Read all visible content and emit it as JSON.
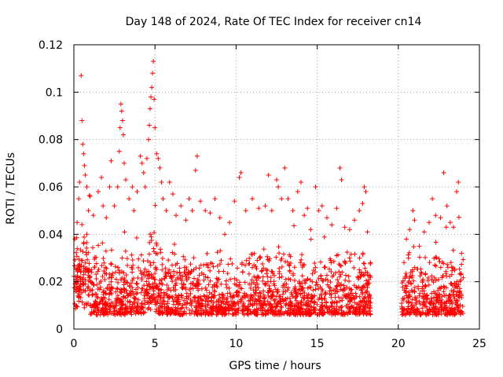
{
  "chart_data": {
    "type": "scatter",
    "title": "Day 148 of 2024, Rate Of TEC Index for receiver cn14",
    "xlabel": "GPS time / hours",
    "ylabel": "ROTI / TECUs",
    "xlim": [
      0,
      25
    ],
    "ylim": [
      0,
      0.12
    ],
    "x_ticks": [
      0,
      5,
      10,
      15,
      20,
      25
    ],
    "x_tick_labels": [
      "0",
      "5",
      "10",
      "15",
      "20",
      "25"
    ],
    "y_ticks": [
      0,
      0.02,
      0.04,
      0.06,
      0.08,
      0.1,
      0.12
    ],
    "y_tick_labels": [
      "0",
      "0.02",
      "0.04",
      "0.06",
      "0.08",
      "0.1",
      "0.12"
    ],
    "grid": true,
    "marker": "+",
    "color": "#ff0000",
    "data_gap_hours": [
      18.3,
      20.2
    ],
    "series": [
      {
        "name": "ROTI",
        "points": [
          [
            0.2,
            0.045
          ],
          [
            0.3,
            0.055
          ],
          [
            0.35,
            0.062
          ],
          [
            0.45,
            0.107
          ],
          [
            0.5,
            0.088
          ],
          [
            0.55,
            0.078
          ],
          [
            0.6,
            0.074
          ],
          [
            0.65,
            0.069
          ],
          [
            0.7,
            0.065
          ],
          [
            0.8,
            0.06
          ],
          [
            0.9,
            0.05
          ],
          [
            1.0,
            0.056
          ],
          [
            1.2,
            0.048
          ],
          [
            1.5,
            0.058
          ],
          [
            1.7,
            0.064
          ],
          [
            1.8,
            0.052
          ],
          [
            2.0,
            0.047
          ],
          [
            2.2,
            0.06
          ],
          [
            2.3,
            0.071
          ],
          [
            2.5,
            0.052
          ],
          [
            2.7,
            0.06
          ],
          [
            2.8,
            0.075
          ],
          [
            2.85,
            0.085
          ],
          [
            2.9,
            0.095
          ],
          [
            2.95,
            0.092
          ],
          [
            3.0,
            0.088
          ],
          [
            3.05,
            0.082
          ],
          [
            3.1,
            0.07
          ],
          [
            3.2,
            0.063
          ],
          [
            3.4,
            0.055
          ],
          [
            3.6,
            0.06
          ],
          [
            3.7,
            0.05
          ],
          [
            3.9,
            0.058
          ],
          [
            4.1,
            0.073
          ],
          [
            4.2,
            0.07
          ],
          [
            4.3,
            0.066
          ],
          [
            4.4,
            0.06
          ],
          [
            4.5,
            0.072
          ],
          [
            4.6,
            0.08
          ],
          [
            4.65,
            0.086
          ],
          [
            4.7,
            0.093
          ],
          [
            4.75,
            0.098
          ],
          [
            4.8,
            0.102
          ],
          [
            4.85,
            0.108
          ],
          [
            4.9,
            0.113
          ],
          [
            4.95,
            0.097
          ],
          [
            5.0,
            0.085
          ],
          [
            5.1,
            0.074
          ],
          [
            5.2,
            0.072
          ],
          [
            5.3,
            0.068
          ],
          [
            5.4,
            0.062
          ],
          [
            5.5,
            0.055
          ],
          [
            5.7,
            0.05
          ],
          [
            5.9,
            0.062
          ],
          [
            6.1,
            0.057
          ],
          [
            6.3,
            0.048
          ],
          [
            6.6,
            0.052
          ],
          [
            6.9,
            0.046
          ],
          [
            7.1,
            0.055
          ],
          [
            7.3,
            0.05
          ],
          [
            7.5,
            0.067
          ],
          [
            7.6,
            0.073
          ],
          [
            7.8,
            0.054
          ],
          [
            8.1,
            0.05
          ],
          [
            8.4,
            0.049
          ],
          [
            8.7,
            0.055
          ],
          [
            9.0,
            0.047
          ],
          [
            9.3,
            0.04
          ],
          [
            9.6,
            0.045
          ],
          [
            9.9,
            0.054
          ],
          [
            10.2,
            0.064
          ],
          [
            10.3,
            0.066
          ],
          [
            10.6,
            0.05
          ],
          [
            11.0,
            0.055
          ],
          [
            11.4,
            0.051
          ],
          [
            11.8,
            0.052
          ],
          [
            12.0,
            0.065
          ],
          [
            12.2,
            0.05
          ],
          [
            12.5,
            0.063
          ],
          [
            12.6,
            0.06
          ],
          [
            12.8,
            0.055
          ],
          [
            13.0,
            0.068
          ],
          [
            13.2,
            0.055
          ],
          [
            13.5,
            0.05
          ],
          [
            13.8,
            0.058
          ],
          [
            14.0,
            0.062
          ],
          [
            14.2,
            0.048
          ],
          [
            14.4,
            0.051
          ],
          [
            14.6,
            0.042
          ],
          [
            14.9,
            0.06
          ],
          [
            15.1,
            0.05
          ],
          [
            15.3,
            0.052
          ],
          [
            15.6,
            0.047
          ],
          [
            15.9,
            0.044
          ],
          [
            16.2,
            0.051
          ],
          [
            16.4,
            0.068
          ],
          [
            16.5,
            0.063
          ],
          [
            16.7,
            0.043
          ],
          [
            17.0,
            0.042
          ],
          [
            17.3,
            0.046
          ],
          [
            17.6,
            0.05
          ],
          [
            17.8,
            0.053
          ],
          [
            17.9,
            0.06
          ],
          [
            18.0,
            0.058
          ],
          [
            18.1,
            0.041
          ],
          [
            20.5,
            0.038
          ],
          [
            20.7,
            0.042
          ],
          [
            20.9,
            0.05
          ],
          [
            21.0,
            0.046
          ],
          [
            21.3,
            0.035
          ],
          [
            21.6,
            0.041
          ],
          [
            21.9,
            0.045
          ],
          [
            22.1,
            0.055
          ],
          [
            22.3,
            0.048
          ],
          [
            22.6,
            0.047
          ],
          [
            22.8,
            0.066
          ],
          [
            23.0,
            0.052
          ],
          [
            23.2,
            0.045
          ],
          [
            23.4,
            0.043
          ],
          [
            23.6,
            0.058
          ],
          [
            23.7,
            0.062
          ],
          [
            23.9,
            0.032
          ]
        ]
      }
    ]
  }
}
